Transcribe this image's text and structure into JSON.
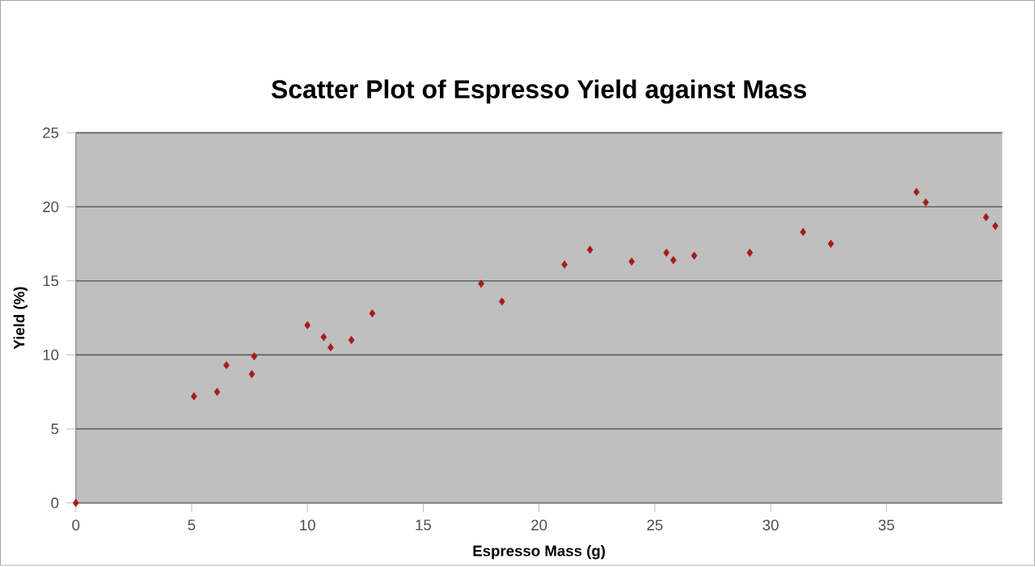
{
  "chart_data": {
    "type": "scatter",
    "title": "Scatter Plot of Espresso Yield against Mass",
    "xlabel": "Espresso Mass (g)",
    "ylabel": "Yield (%)",
    "x": [
      0,
      5.1,
      6.1,
      6.5,
      7.6,
      7.7,
      10.0,
      10.7,
      11.0,
      11.9,
      12.8,
      17.5,
      18.4,
      21.1,
      22.2,
      24.0,
      25.5,
      25.8,
      26.7,
      29.1,
      31.4,
      32.6,
      36.3,
      36.7,
      39.3,
      39.7
    ],
    "values": [
      0,
      7.2,
      7.5,
      9.3,
      8.7,
      9.9,
      12.0,
      11.2,
      10.5,
      11.0,
      12.8,
      14.8,
      13.6,
      16.1,
      17.1,
      16.3,
      16.9,
      16.4,
      16.7,
      16.9,
      18.3,
      17.5,
      21.0,
      20.3,
      19.3,
      18.7
    ],
    "color": "#a81c1c",
    "marker": "diamond",
    "grid": "y",
    "xlim": [
      0,
      40
    ],
    "ylim": [
      0,
      25
    ],
    "xticks": [
      0,
      5,
      10,
      15,
      20,
      25,
      30,
      35
    ],
    "yticks": [
      0,
      5,
      10,
      15,
      20,
      25
    ]
  }
}
